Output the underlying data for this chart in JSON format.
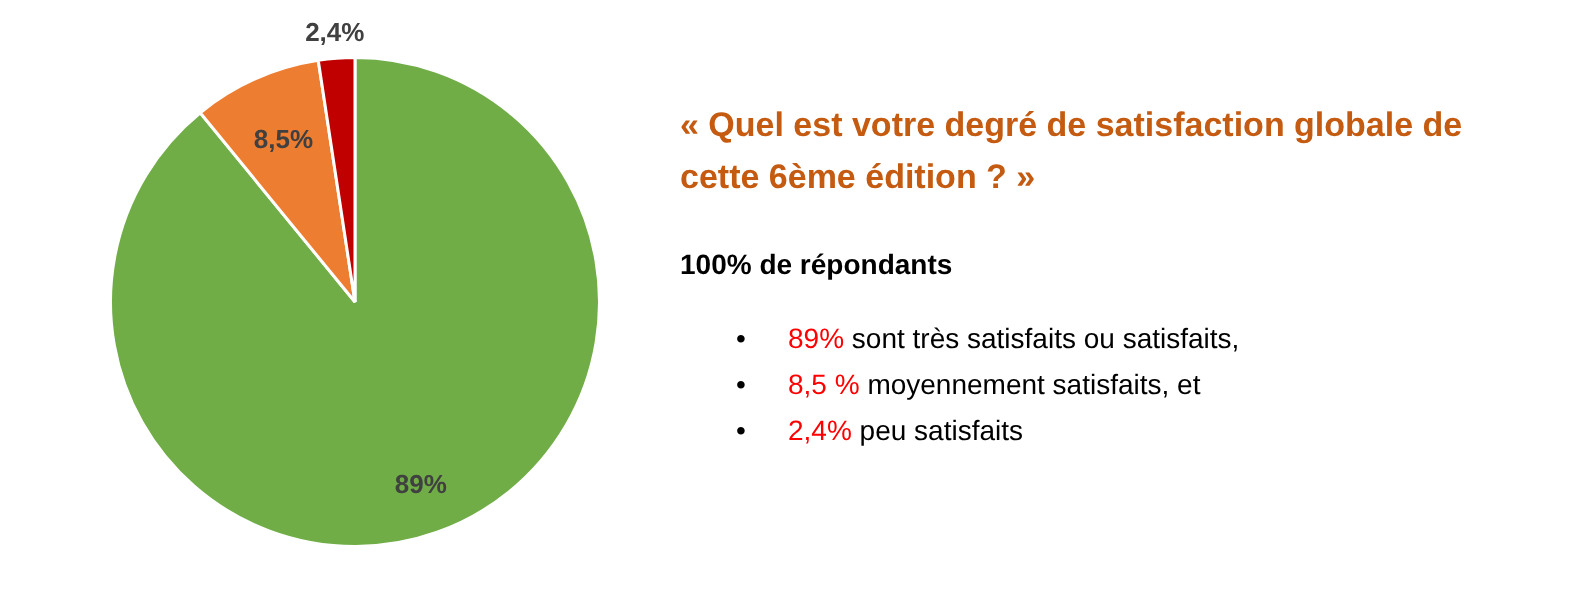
{
  "chart_data": {
    "type": "pie",
    "title": "« Quel est votre degré de satisfaction globale de cette 6ème édition ? »",
    "subtitle": "100% de répondants",
    "categories": [
      null,
      null,
      null
    ],
    "values": [
      89,
      8.5,
      2.4
    ],
    "colors": [
      "#70ad47",
      "#ed7d31",
      "#c00000"
    ],
    "value_labels": [
      "89%",
      "8,5%",
      "2,4%"
    ],
    "legend": false,
    "annotations": [
      "•\t89% sont très satisfaits ou satisfaits,",
      "•\t8,5 % moyennement satisfaits, et",
      "•\t2,4% peu satisfaits"
    ]
  }
}
